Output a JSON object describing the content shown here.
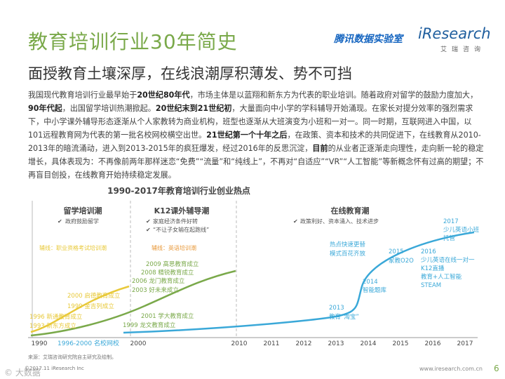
{
  "header": {
    "title": "教育培训行业30年简史",
    "subtitle": "面授教育土壤深厚，在线浪潮厚积薄发、势不可挡",
    "logo_tencent": "腾讯数据实验室",
    "logo_iresearch": "iResearch",
    "logo_iresearch_cn": "艾瑞咨询"
  },
  "paragraph": {
    "s1": "我国现代教育培训行业最早始于",
    "b1": "20世纪80年代",
    "s2": "，市场主体是以蓝翔和新东方为代表的职业培训。随着政府对留学的鼓励力度加大，",
    "b2": "90年代起",
    "s3": "，出国留学培训热潮掀起。",
    "b3": "20世纪末到21世纪初",
    "s4": "，大量面向中小学的学科辅导开始涌现。在家长对提分效率的强烈需求下，中小学课外辅导形态逐渐从个人家教转为商业机构，班型也逐渐从大班演变为小班和一对一。同一时期，互联网进入中国，以101远程教育网为代表的第一批名校网校横空出世。",
    "b4": "21世纪第一个十年之后",
    "s5": "，在政策、资本和技术的共同促进下，在线教育从2010-2013年的暗流涌动，进入到2013-2015年的疯狂爆发，经过2016年的反思沉淀，",
    "b5": "目前",
    "s6": "的从业者正逐渐走向理性，走向新一轮的稳定增长，具体表现为：不再像前两年那样迷恋“免费”“流量”和“纯线上”，不再对“自适应”“VR”“人工智能”等新概念怀有过高的期望；不再盲目创投，在线教育开始持续稳定发展。"
  },
  "chart_data": {
    "type": "line",
    "title": "1990-2017年教育培训行业创业热点",
    "x_ticks": [
      "1990",
      "2000",
      "2010",
      "2011",
      "2012",
      "2013",
      "2014",
      "2015",
      "2016",
      "2017"
    ],
    "x_tick_1996": "1996-2000 名校网校",
    "phases": [
      {
        "name": "留学培训潮",
        "bullets": [
          "政府鼓励留学"
        ],
        "mainline": "辅线：职业资格考试培训潮"
      },
      {
        "name": "K12课外辅导潮",
        "bullets": [
          "家庭经济条件好转",
          "“不让子女输在起跑线”"
        ],
        "mainline": "辅线：英语培训潮"
      },
      {
        "name": "在线教育潮",
        "bullets": [
          "政策利好、资本涌入、技术进步"
        ]
      }
    ],
    "series": [
      {
        "name": "留学培训",
        "color": "#e8c93a"
      },
      {
        "name": "K12辅导",
        "color": "#7aa94a"
      },
      {
        "name": "在线教育",
        "color": "#3aa8d8"
      }
    ],
    "events_yellow": [
      "2000 启德教育成立",
      "1999 金吉列成立",
      "1996 新通教育成立",
      "1993 新东方成立"
    ],
    "events_green": [
      "2009 高思教育成立",
      "2008 精锐教育成立",
      "2006 龙门教育成立",
      "2003 好未来成立",
      "2001 学大教育成立",
      "1999 龙文教育成立"
    ],
    "events_blue": [
      {
        "year": "2013",
        "lines": [
          "2013",
          "教育“淘宝”"
        ]
      },
      {
        "year": "2014",
        "lines": [
          "2014",
          "智能题库"
        ]
      },
      {
        "year": "2014-15",
        "lines": [
          "热点快速更替",
          "模式百花齐放"
        ]
      },
      {
        "year": "2015",
        "lines": [
          "2015",
          "家教O2O"
        ]
      },
      {
        "year": "2016",
        "lines": [
          "2016",
          "少儿英语在线一对一",
          "K12直播",
          "教育+人工智能",
          "STEAM"
        ]
      },
      {
        "year": "2017",
        "lines": [
          "2017",
          "少儿英语小班",
          "托管"
        ]
      }
    ]
  },
  "footer": {
    "source": "来源：艾瑞咨询研究院自主研究及绘制。",
    "company": "©2017.11 iResearch Inc",
    "url": "www.iresearch.com.cn",
    "page": "6",
    "watermark": "©  大数据"
  },
  "colors": {
    "accent_green": "#7aa94a",
    "orange": "#e89a3c",
    "blue": "#3aa8d8",
    "yellow": "#e8c93a"
  }
}
